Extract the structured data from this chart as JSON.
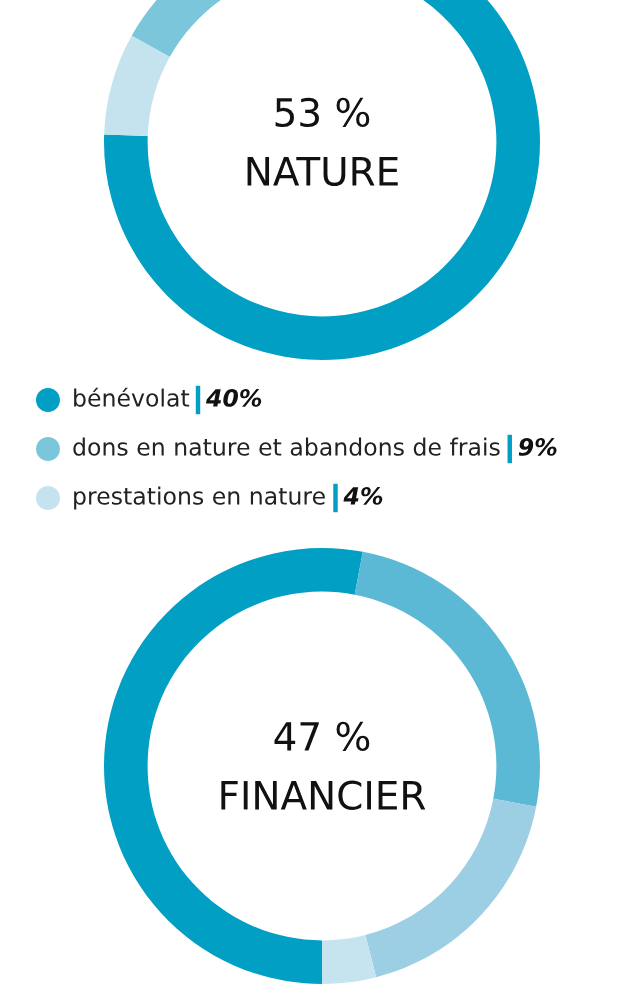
{
  "chart_data": [
    {
      "type": "donut",
      "title": "NATURE",
      "subtitle": "53 %",
      "categories": [
        "bénévolat",
        "dons en nature et abandons de frais",
        "prestations en nature"
      ],
      "values": [
        40,
        9,
        4
      ],
      "value_labels": [
        "40%",
        "9%",
        "4%"
      ],
      "colors": [
        "#009fc3",
        "#7cc6dc",
        "#c4e3ef"
      ],
      "legend": "bottom"
    },
    {
      "type": "donut",
      "title": "FINANCIER",
      "subtitle": "47 %",
      "categories": [
        null,
        null,
        null,
        null
      ],
      "values": [
        53,
        25,
        18,
        4
      ],
      "colors": [
        "#009fc3",
        "#5bb9d6",
        "#9ccfe3",
        "#c6e4ef"
      ]
    }
  ]
}
